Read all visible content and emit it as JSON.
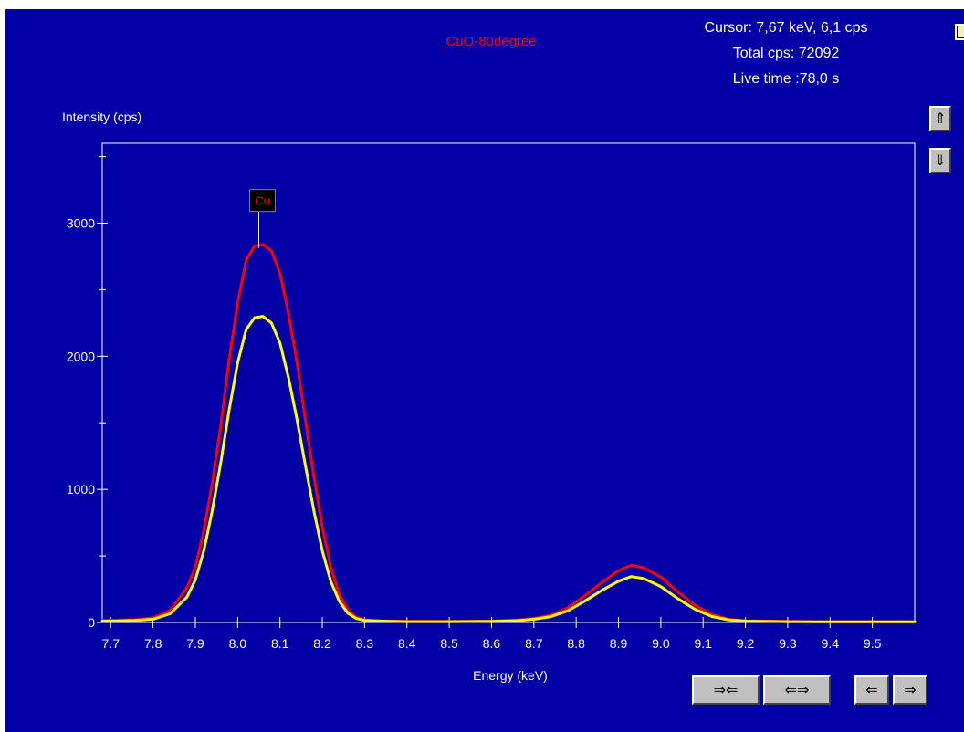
{
  "header": {
    "sample_name": "CuO-80degree",
    "cursor_readout": "Cursor: 7,67 keV, 6,1 cps",
    "total_cps": "Total cps: 72092",
    "live_time": "Live time :78,0 s"
  },
  "controls": {
    "scale_up_label": "⇑",
    "scale_down_label": "⇓",
    "zoom_in_label": "⇒⇐",
    "zoom_out_label": "⇐⇒",
    "pan_left_label": "⇐",
    "pan_right_label": "⇒"
  },
  "colors": {
    "background": "#0000a4",
    "axis": "#ffffff",
    "series_1": "#ff0000",
    "series_2": "#ffff00",
    "title": "#ff0000",
    "peak_marker_bg": "#000000",
    "peak_marker_text": "#ff0000"
  },
  "chart_data": {
    "type": "line",
    "title": "CuO-80degree",
    "xlabel": "Energy (keV)",
    "ylabel": "Intensity (cps)",
    "xlim": [
      7.68,
      9.6
    ],
    "ylim": [
      0,
      3600
    ],
    "x_ticks": [
      7.7,
      7.8,
      7.9,
      8.0,
      8.1,
      8.2,
      8.3,
      8.4,
      8.5,
      8.6,
      8.7,
      8.8,
      8.9,
      9.0,
      9.1,
      9.2,
      9.3,
      9.4,
      9.5
    ],
    "x_tick_labels": [
      "7.7",
      "7.8",
      "7.9",
      "8.0",
      "8.1",
      "8.2",
      "8.3",
      "8.4",
      "8.5",
      "8.6",
      "8.7",
      "8.8",
      "8.9",
      "9.0",
      "9.1",
      "9.2",
      "9.3",
      "9.4",
      "9.5"
    ],
    "y_ticks": [
      0,
      1000,
      2000,
      3000
    ],
    "y_tick_labels": [
      "0",
      "1000",
      "2000",
      "3000"
    ],
    "y_minor_ticks": [
      500,
      1500,
      2500,
      3500
    ],
    "grid": false,
    "peak_markers": [
      {
        "label": "Cu",
        "x": 8.05,
        "y": 2800
      }
    ],
    "series": [
      {
        "color": "#ff0000",
        "x": [
          7.68,
          7.72,
          7.76,
          7.8,
          7.84,
          7.88,
          7.9,
          7.92,
          7.94,
          7.96,
          7.98,
          8.0,
          8.02,
          8.04,
          8.06,
          8.08,
          8.1,
          8.12,
          8.14,
          8.16,
          8.18,
          8.2,
          8.22,
          8.24,
          8.26,
          8.28,
          8.3,
          8.34,
          8.4,
          8.5,
          8.6,
          8.66,
          8.7,
          8.74,
          8.78,
          8.82,
          8.86,
          8.9,
          8.93,
          8.96,
          9.0,
          9.04,
          9.08,
          9.12,
          9.16,
          9.2,
          9.3,
          9.4,
          9.5,
          9.6
        ],
        "y": [
          15,
          18,
          22,
          35,
          90,
          260,
          420,
          690,
          1050,
          1480,
          1980,
          2400,
          2720,
          2830,
          2840,
          2790,
          2620,
          2320,
          1960,
          1520,
          1100,
          720,
          420,
          210,
          95,
          40,
          20,
          12,
          8,
          8,
          10,
          18,
          30,
          55,
          110,
          200,
          300,
          390,
          430,
          410,
          340,
          230,
          130,
          60,
          25,
          12,
          8,
          6,
          6,
          6
        ]
      },
      {
        "color": "#ffff00",
        "x": [
          7.68,
          7.72,
          7.76,
          7.8,
          7.84,
          7.88,
          7.9,
          7.92,
          7.94,
          7.96,
          7.98,
          8.0,
          8.02,
          8.04,
          8.06,
          8.08,
          8.1,
          8.12,
          8.14,
          8.16,
          8.18,
          8.2,
          8.22,
          8.24,
          8.26,
          8.28,
          8.3,
          8.34,
          8.4,
          8.5,
          8.6,
          8.66,
          8.7,
          8.74,
          8.78,
          8.82,
          8.86,
          8.9,
          8.93,
          8.96,
          9.0,
          9.04,
          9.08,
          9.12,
          9.16,
          9.2,
          9.3,
          9.4,
          9.5,
          9.6
        ],
        "y": [
          10,
          12,
          15,
          25,
          65,
          190,
          320,
          540,
          840,
          1200,
          1600,
          1950,
          2200,
          2290,
          2300,
          2250,
          2100,
          1840,
          1530,
          1180,
          840,
          540,
          310,
          160,
          70,
          30,
          15,
          10,
          6,
          6,
          8,
          14,
          24,
          44,
          88,
          160,
          240,
          310,
          345,
          330,
          270,
          180,
          100,
          45,
          20,
          10,
          6,
          5,
          5,
          5
        ]
      }
    ]
  }
}
